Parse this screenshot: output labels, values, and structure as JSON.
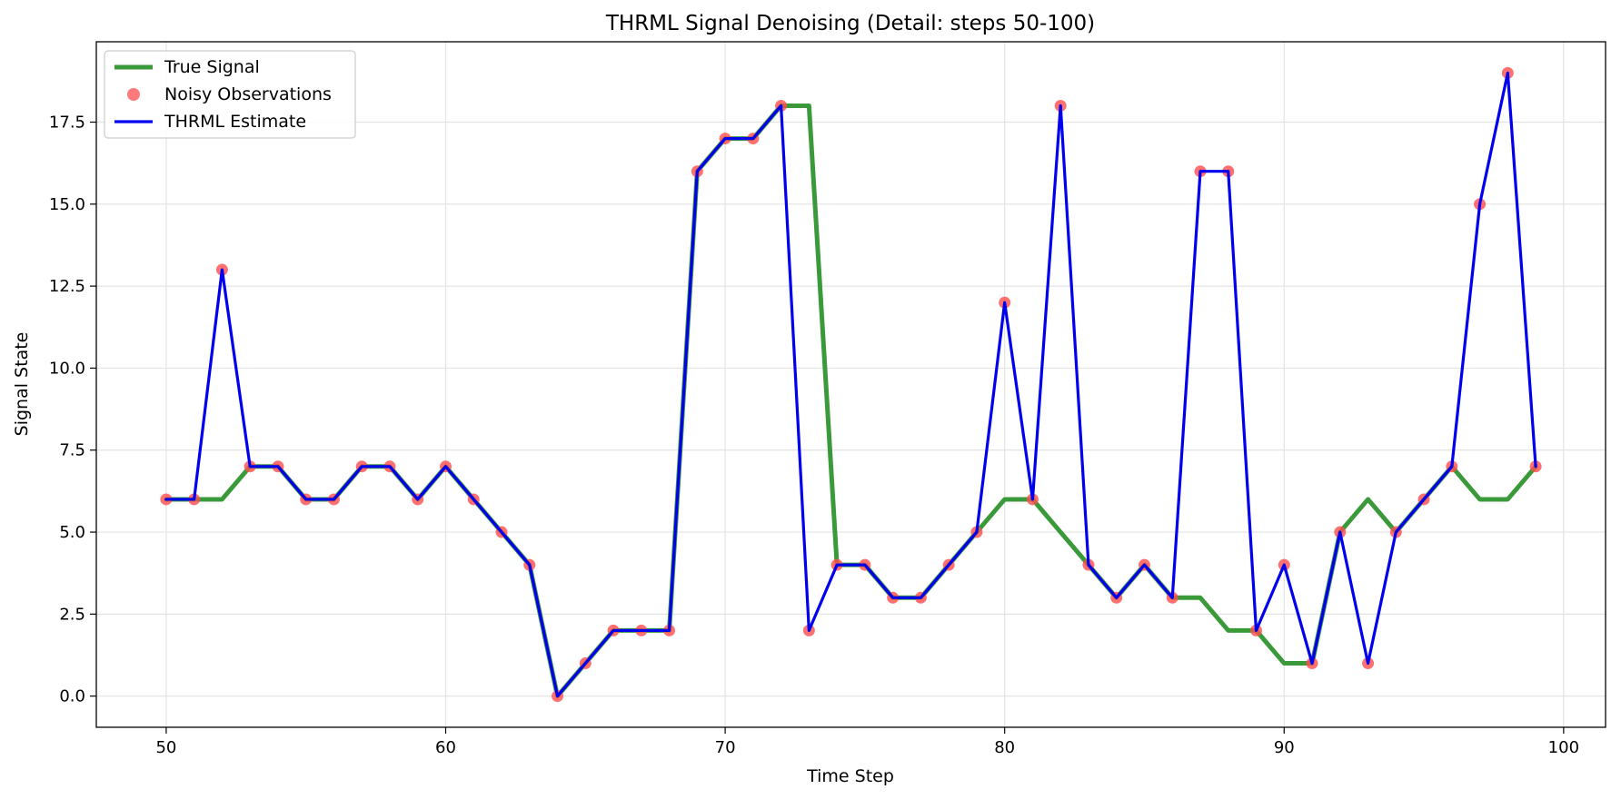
{
  "chart_data": {
    "type": "line",
    "title": "THRML Signal Denoising (Detail: steps 50-100)",
    "xlabel": "Time Step",
    "ylabel": "Signal State",
    "xlim": [
      47.5,
      101.5
    ],
    "ylim": [
      -0.95,
      19.95
    ],
    "xticks": [
      50,
      60,
      70,
      80,
      90,
      100
    ],
    "yticks": [
      0.0,
      2.5,
      5.0,
      7.5,
      10.0,
      12.5,
      15.0,
      17.5
    ],
    "grid": true,
    "legend_position": "top-left",
    "x": [
      50,
      51,
      52,
      53,
      54,
      55,
      56,
      57,
      58,
      59,
      60,
      61,
      62,
      63,
      64,
      65,
      66,
      67,
      68,
      69,
      70,
      71,
      72,
      73,
      74,
      75,
      76,
      77,
      78,
      79,
      80,
      81,
      82,
      83,
      84,
      85,
      86,
      87,
      88,
      89,
      90,
      91,
      92,
      93,
      94,
      95,
      96,
      97,
      98,
      99
    ],
    "series": [
      {
        "name": "True Signal",
        "style": "line",
        "color": "#3a9a3a",
        "values": [
          6,
          6,
          6,
          7,
          7,
          6,
          6,
          7,
          7,
          6,
          7,
          6,
          5,
          4,
          0,
          1,
          2,
          2,
          2,
          16,
          17,
          17,
          18,
          18,
          4,
          4,
          3,
          3,
          4,
          5,
          6,
          6,
          5,
          4,
          3,
          4,
          3,
          3,
          2,
          2,
          1,
          1,
          5,
          6,
          5,
          6,
          7,
          6,
          6,
          7
        ]
      },
      {
        "name": "Noisy Observations",
        "style": "marker",
        "color": "#ff4d4d",
        "values": [
          6,
          6,
          13,
          7,
          7,
          6,
          6,
          7,
          7,
          6,
          7,
          6,
          5,
          4,
          0,
          1,
          2,
          2,
          2,
          16,
          17,
          17,
          18,
          2,
          4,
          4,
          3,
          3,
          4,
          5,
          12,
          6,
          18,
          4,
          3,
          4,
          3,
          16,
          16,
          2,
          4,
          1,
          5,
          1,
          5,
          6,
          7,
          15,
          19,
          7
        ]
      },
      {
        "name": "THRML Estimate",
        "style": "line",
        "color": "#0000ee",
        "values": [
          6,
          6,
          13,
          7,
          7,
          6,
          6,
          7,
          7,
          6,
          7,
          6,
          5,
          4,
          0,
          1,
          2,
          2,
          2,
          16,
          17,
          17,
          18,
          2,
          4,
          4,
          3,
          3,
          4,
          5,
          12,
          6,
          18,
          4,
          3,
          4,
          3,
          16,
          16,
          2,
          4,
          1,
          5,
          1,
          5,
          6,
          7,
          15,
          19,
          7
        ]
      }
    ]
  }
}
